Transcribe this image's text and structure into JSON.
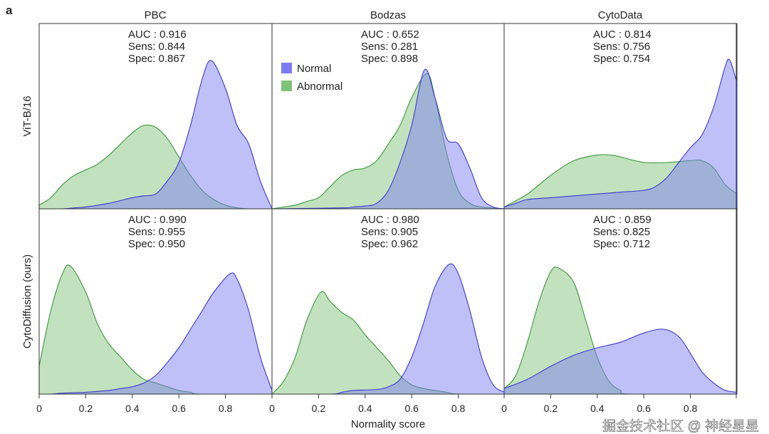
{
  "panel_label": "a",
  "watermark": "掘金技术社区 @ 神经星星",
  "colors": {
    "normal_fill": "#7b7bf2",
    "normal_stroke": "#3a3ac8",
    "abnormal_fill": "#7fc27a",
    "abnormal_stroke": "#3c963a"
  },
  "chart_data": {
    "type": "area",
    "xlabel": "Normality score",
    "xlim": [
      0,
      1
    ],
    "xticks": [
      "0",
      "0.2",
      "0.4",
      "0.6",
      "0.8"
    ],
    "ylim": [
      0,
      1
    ],
    "legend": {
      "placement": "top-left of Bodzas / ViT-B/16 panel",
      "entries": [
        "Normal",
        "Abnormal"
      ]
    },
    "columns": [
      "PBC",
      "Bodzas",
      "CytoData"
    ],
    "rows": [
      "ViT-B/16",
      "CytoDiffusion (ours)"
    ],
    "panels": [
      {
        "row": 0,
        "col": 0,
        "auc": "AUC : 0.916",
        "sens": "Sens: 0.844",
        "spec": "Spec: 0.867",
        "normal": {
          "x": [
            0,
            0.1,
            0.15,
            0.2,
            0.3,
            0.4,
            0.45,
            0.5,
            0.55,
            0.6,
            0.65,
            0.7,
            0.74,
            0.8,
            0.85,
            0.9,
            0.95,
            1
          ],
          "y": [
            0,
            0,
            0.005,
            0.01,
            0.03,
            0.06,
            0.07,
            0.08,
            0.15,
            0.25,
            0.45,
            0.7,
            0.8,
            0.65,
            0.45,
            0.35,
            0.15,
            0
          ]
        },
        "abnormal": {
          "x": [
            0,
            0.05,
            0.1,
            0.15,
            0.2,
            0.25,
            0.3,
            0.35,
            0.4,
            0.45,
            0.5,
            0.55,
            0.6,
            0.65,
            0.7,
            0.75,
            0.8,
            0.85,
            0.9,
            1
          ],
          "y": [
            0.02,
            0.06,
            0.13,
            0.18,
            0.21,
            0.24,
            0.29,
            0.35,
            0.41,
            0.45,
            0.44,
            0.38,
            0.28,
            0.18,
            0.1,
            0.05,
            0.02,
            0.005,
            0,
            0
          ]
        }
      },
      {
        "row": 0,
        "col": 1,
        "auc": "AUC : 0.652",
        "sens": "Sens: 0.281",
        "spec": "Spec: 0.898",
        "normal": {
          "x": [
            0,
            0.3,
            0.35,
            0.4,
            0.45,
            0.5,
            0.55,
            0.6,
            0.655,
            0.7,
            0.75,
            0.8,
            0.85,
            0.9,
            0.95,
            1
          ],
          "y": [
            0,
            0.005,
            0.01,
            0.015,
            0.03,
            0.1,
            0.25,
            0.45,
            0.75,
            0.6,
            0.38,
            0.35,
            0.22,
            0.06,
            0.01,
            0
          ]
        },
        "abnormal": {
          "x": [
            0,
            0.05,
            0.1,
            0.15,
            0.2,
            0.25,
            0.3,
            0.35,
            0.4,
            0.45,
            0.5,
            0.55,
            0.6,
            0.665,
            0.7,
            0.75,
            0.8,
            0.85,
            0.9,
            1
          ],
          "y": [
            0,
            0.01,
            0.02,
            0.04,
            0.06,
            0.12,
            0.18,
            0.21,
            0.22,
            0.26,
            0.35,
            0.45,
            0.6,
            0.73,
            0.6,
            0.3,
            0.1,
            0.03,
            0.01,
            0
          ]
        }
      },
      {
        "row": 0,
        "col": 2,
        "auc": "AUC : 0.814",
        "sens": "Sens: 0.756",
        "spec": "Spec: 0.754",
        "normal": {
          "x": [
            0,
            0.05,
            0.1,
            0.2,
            0.3,
            0.4,
            0.5,
            0.6,
            0.65,
            0.7,
            0.75,
            0.8,
            0.85,
            0.9,
            0.95,
            0.97,
            1
          ],
          "y": [
            0.01,
            0.03,
            0.05,
            0.06,
            0.07,
            0.08,
            0.09,
            0.1,
            0.12,
            0.17,
            0.25,
            0.33,
            0.4,
            0.55,
            0.77,
            0.8,
            0.68
          ]
        },
        "abnormal": {
          "x": [
            0,
            0.1,
            0.2,
            0.3,
            0.4,
            0.46,
            0.5,
            0.6,
            0.7,
            0.8,
            0.85,
            0.9,
            0.95,
            1
          ],
          "y": [
            0.01,
            0.08,
            0.18,
            0.26,
            0.29,
            0.29,
            0.28,
            0.25,
            0.25,
            0.26,
            0.26,
            0.22,
            0.13,
            0.08
          ]
        }
      },
      {
        "row": 1,
        "col": 0,
        "auc": "AUC : 0.990",
        "sens": "Sens: 0.955",
        "spec": "Spec: 0.950",
        "normal": {
          "x": [
            0,
            0.05,
            0.1,
            0.2,
            0.3,
            0.35,
            0.4,
            0.45,
            0.5,
            0.55,
            0.6,
            0.65,
            0.7,
            0.75,
            0.82,
            0.85,
            0.9,
            0.95,
            1
          ],
          "y": [
            0,
            0,
            0.005,
            0.01,
            0.02,
            0.03,
            0.04,
            0.06,
            0.1,
            0.17,
            0.25,
            0.35,
            0.45,
            0.55,
            0.65,
            0.62,
            0.45,
            0.2,
            0.02
          ]
        },
        "abnormal": {
          "x": [
            0,
            0.05,
            0.1,
            0.135,
            0.2,
            0.25,
            0.3,
            0.35,
            0.4,
            0.45,
            0.5,
            0.55,
            0.6,
            0.65,
            0.7,
            1
          ],
          "y": [
            0.15,
            0.45,
            0.65,
            0.69,
            0.55,
            0.38,
            0.27,
            0.2,
            0.13,
            0.08,
            0.06,
            0.04,
            0.02,
            0.01,
            0,
            0
          ]
        }
      },
      {
        "row": 1,
        "col": 1,
        "auc": "AUC : 0.980",
        "sens": "Sens: 0.905",
        "spec": "Spec: 0.962",
        "normal": {
          "x": [
            0,
            0.25,
            0.3,
            0.35,
            0.45,
            0.5,
            0.55,
            0.6,
            0.65,
            0.7,
            0.76,
            0.8,
            0.85,
            0.9,
            0.95,
            1
          ],
          "y": [
            0,
            0,
            0.01,
            0.02,
            0.025,
            0.04,
            0.08,
            0.2,
            0.38,
            0.58,
            0.7,
            0.65,
            0.45,
            0.2,
            0.05,
            0.01
          ]
        },
        "abnormal": {
          "x": [
            0,
            0.05,
            0.1,
            0.15,
            0.21,
            0.25,
            0.3,
            0.35,
            0.4,
            0.45,
            0.5,
            0.55,
            0.6,
            0.65,
            0.7,
            0.75,
            0.8,
            1
          ],
          "y": [
            0,
            0.07,
            0.2,
            0.4,
            0.55,
            0.5,
            0.44,
            0.4,
            0.32,
            0.25,
            0.18,
            0.1,
            0.05,
            0.03,
            0.02,
            0.01,
            0,
            0
          ]
        }
      },
      {
        "row": 1,
        "col": 2,
        "auc": "AUC : 0.859",
        "sens": "Sens: 0.825",
        "spec": "Spec: 0.712",
        "normal": {
          "x": [
            0,
            0.1,
            0.2,
            0.3,
            0.4,
            0.5,
            0.6,
            0.685,
            0.75,
            0.8,
            0.85,
            0.9,
            0.95,
            1
          ],
          "y": [
            0.03,
            0.08,
            0.15,
            0.21,
            0.25,
            0.28,
            0.33,
            0.35,
            0.31,
            0.22,
            0.12,
            0.06,
            0.02,
            0.01
          ]
        },
        "abnormal": {
          "x": [
            0,
            0.05,
            0.1,
            0.15,
            0.2,
            0.235,
            0.3,
            0.35,
            0.4,
            0.45,
            0.5,
            0.55,
            1
          ],
          "y": [
            0.03,
            0.1,
            0.28,
            0.5,
            0.66,
            0.68,
            0.6,
            0.4,
            0.2,
            0.07,
            0.02,
            0,
            0
          ]
        }
      }
    ]
  }
}
